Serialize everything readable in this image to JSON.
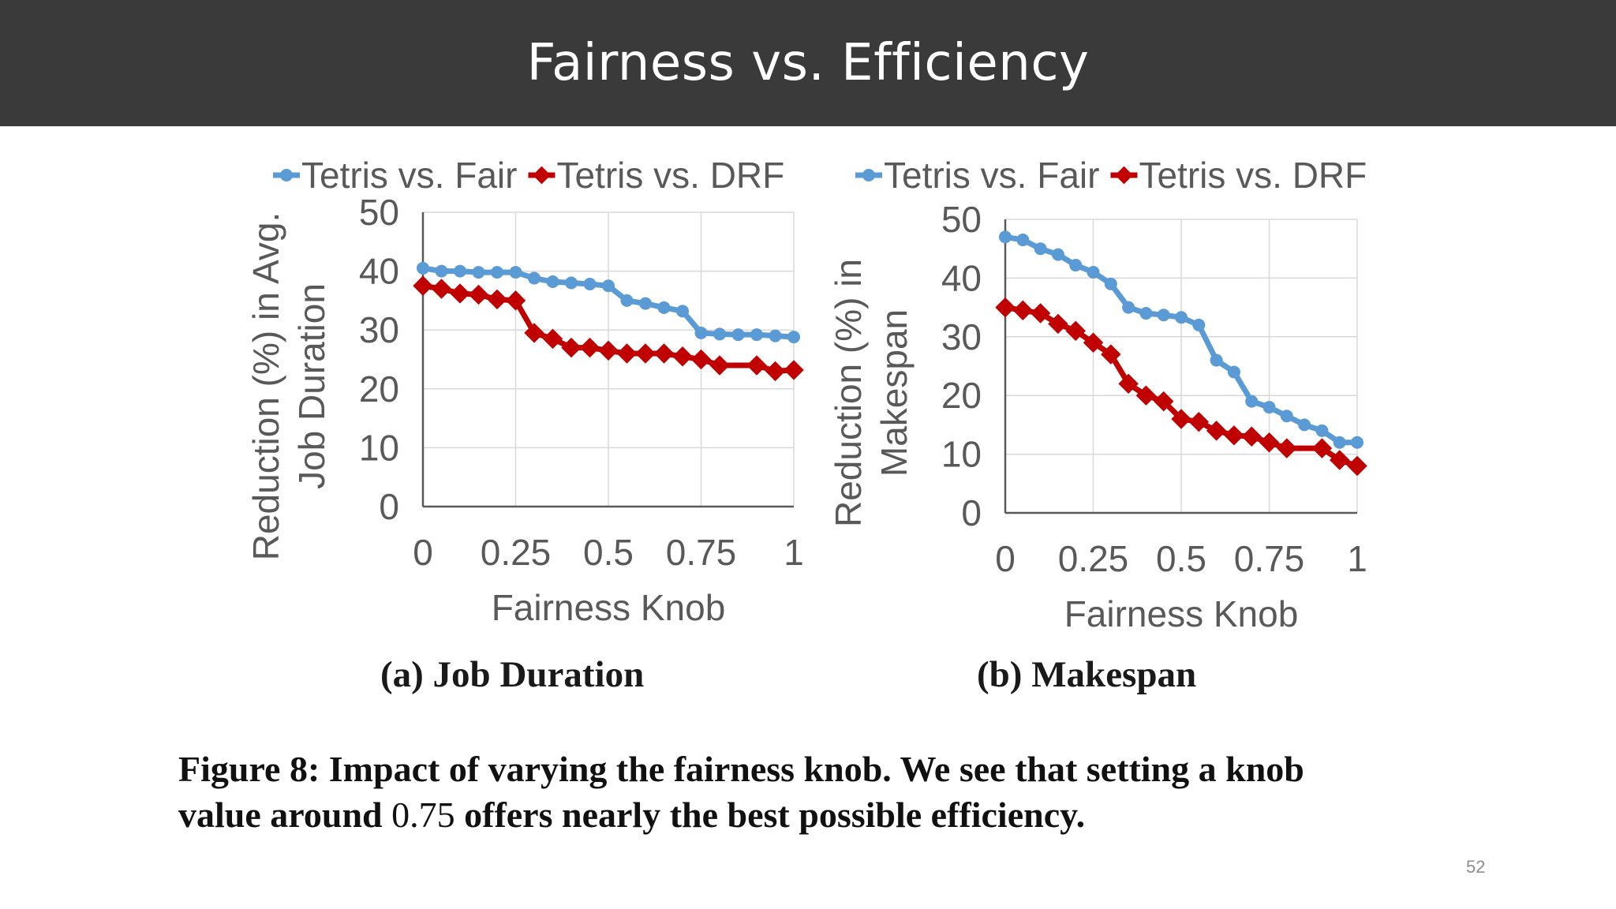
{
  "slide": {
    "title": "Fairness vs. Efficiency",
    "page_number": "52"
  },
  "figure": {
    "caption_line1": "Figure 8: Impact of varying the fairness knob. We see that setting a knob",
    "caption_line2_a": "value around ",
    "caption_line2_num": "0.75",
    "caption_line2_b": " offers nearly the best possible efficiency."
  },
  "colors": {
    "title_bar": "#3a3a3a",
    "fair_series": "#5b9bd5",
    "drf_series": "#c00000",
    "grid": "#d9d9d9",
    "axis": "#595959"
  },
  "chart_data": [
    {
      "type": "line",
      "subcaption": "(a) Job Duration",
      "xlabel": "Fairness Knob",
      "ylabel_line1": "Reduction (%) in Avg.",
      "ylabel_line2": "Job Duration",
      "xlim": [
        0,
        1
      ],
      "ylim": [
        0,
        50
      ],
      "xticks": [
        "0",
        "0.25",
        "0.5",
        "0.75",
        "1"
      ],
      "yticks": [
        "0",
        "10",
        "20",
        "30",
        "40",
        "50"
      ],
      "grid": true,
      "legend_position": "top",
      "series": [
        {
          "name": "Tetris vs. Fair",
          "marker": "circle",
          "x": [
            0,
            0.05,
            0.1,
            0.15,
            0.2,
            0.25,
            0.3,
            0.35,
            0.4,
            0.45,
            0.5,
            0.55,
            0.6,
            0.65,
            0.7,
            0.75,
            0.8,
            0.85,
            0.9,
            0.95,
            1
          ],
          "y": [
            40.5,
            40,
            40,
            39.8,
            39.8,
            39.8,
            38.8,
            38.2,
            38,
            37.8,
            37.5,
            35,
            34.5,
            33.8,
            33.2,
            29.5,
            29.3,
            29.2,
            29.2,
            29,
            28.8
          ]
        },
        {
          "name": "Tetris vs. DRF",
          "marker": "diamond",
          "x": [
            0,
            0.05,
            0.1,
            0.15,
            0.2,
            0.25,
            0.3,
            0.35,
            0.4,
            0.45,
            0.5,
            0.55,
            0.6,
            0.65,
            0.7,
            0.75,
            0.8,
            0.9,
            0.95,
            1
          ],
          "y": [
            37.5,
            37,
            36.2,
            36,
            35.2,
            35,
            29.5,
            28.5,
            27,
            27,
            26.5,
            26,
            26,
            26,
            25.5,
            25,
            24,
            24,
            23,
            23.2
          ]
        }
      ]
    },
    {
      "type": "line",
      "subcaption": "(b) Makespan",
      "xlabel": "Fairness Knob",
      "ylabel_line1": "Reduction (%) in",
      "ylabel_line2": "Makespan",
      "xlim": [
        0,
        1
      ],
      "ylim": [
        0,
        50
      ],
      "xticks": [
        "0",
        "0.25",
        "0.5",
        "0.75",
        "1"
      ],
      "yticks": [
        "0",
        "10",
        "20",
        "30",
        "40",
        "50"
      ],
      "grid": true,
      "legend_position": "top",
      "series": [
        {
          "name": "Tetris vs. Fair",
          "marker": "circle",
          "x": [
            0,
            0.05,
            0.1,
            0.15,
            0.2,
            0.25,
            0.3,
            0.35,
            0.4,
            0.45,
            0.5,
            0.55,
            0.6,
            0.65,
            0.7,
            0.75,
            0.8,
            0.85,
            0.9,
            0.95,
            1
          ],
          "y": [
            47,
            46.5,
            45,
            44,
            42.2,
            41,
            39,
            35,
            34,
            33.7,
            33.3,
            32,
            26,
            24,
            19,
            18,
            16.5,
            15,
            14,
            12,
            12
          ]
        },
        {
          "name": "Tetris vs. DRF",
          "marker": "diamond",
          "x": [
            0,
            0.05,
            0.1,
            0.15,
            0.2,
            0.25,
            0.3,
            0.35,
            0.4,
            0.45,
            0.5,
            0.55,
            0.6,
            0.65,
            0.7,
            0.75,
            0.8,
            0.9,
            0.95,
            1
          ],
          "y": [
            35,
            34.5,
            34,
            32.2,
            31,
            29,
            27,
            22,
            20,
            19,
            16,
            15.5,
            14,
            13.2,
            13,
            12,
            11,
            11,
            9,
            8
          ]
        }
      ]
    }
  ]
}
